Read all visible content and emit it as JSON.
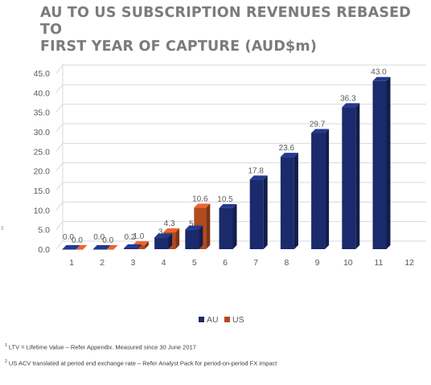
{
  "title_line1": "AU TO US SUBSCRIPTION REVENUES REBASED TO",
  "title_line2": "FIRST YEAR OF CAPTURE (AUD$m)",
  "footnotes": [
    {
      "marker": "1",
      "text": "LTV = Lifetime Value – Refer Appendix. Measured since 30 June 2017"
    },
    {
      "marker": "2",
      "text": "US ACV translated at period end exchange rate – Refer Analyst Pack for period-on-period FX impact"
    }
  ],
  "side_mark": "3",
  "colors": {
    "AU": "#1a2a6c",
    "US": "#b24a1f",
    "grid": "#d9d9d9",
    "text": "#595959"
  },
  "chart_data": {
    "type": "bar",
    "title": "AU TO US SUBSCRIPTION REVENUES REBASED TO FIRST YEAR OF CAPTURE (AUD$m)",
    "categories": [
      "1",
      "2",
      "3",
      "4",
      "5",
      "6",
      "7",
      "8",
      "9",
      "10",
      "11",
      "12"
    ],
    "series": [
      {
        "name": "AU",
        "values": [
          0.0,
          0.0,
          0.2,
          3.0,
          5.0,
          10.5,
          17.8,
          23.6,
          29.7,
          36.3,
          43.0,
          null
        ],
        "labels": [
          "0.0",
          "0.0",
          "0.2",
          "3",
          "5",
          "10.5",
          "17.8",
          "23.6",
          "29.7",
          "36.3",
          "43.0",
          ""
        ]
      },
      {
        "name": "US",
        "values": [
          0.0,
          0.0,
          1.0,
          4.3,
          10.6,
          null,
          null,
          null,
          null,
          null,
          null,
          null
        ],
        "labels": [
          "0.0",
          "0.0",
          "1.0",
          "4.3",
          "10.6",
          "",
          "",
          "",
          "",
          "",
          "",
          ""
        ]
      }
    ],
    "yticks": [
      "0.0",
      "5.0",
      "10.0",
      "15.0",
      "20.0",
      "25.0",
      "30.0",
      "35.0",
      "40.0",
      "45.0"
    ],
    "ylim": [
      0,
      45
    ],
    "grid": true,
    "legend_position": "bottom"
  }
}
